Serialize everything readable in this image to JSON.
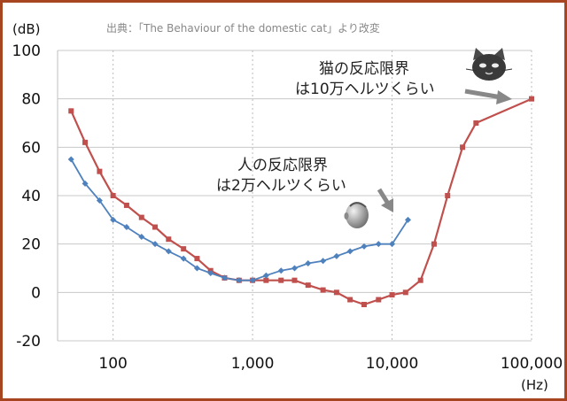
{
  "chart_data": {
    "type": "line",
    "source": "出典：「The Behaviour of the domestic cat」より改変",
    "y_unit": "(dB)",
    "x_unit": "(Hz)",
    "x_scale": "log",
    "xlim": [
      40,
      100000
    ],
    "ylim": [
      -20,
      100
    ],
    "y_ticks": [
      -20,
      0,
      20,
      40,
      60,
      80,
      100
    ],
    "x_ticks": [
      {
        "value": 100,
        "label": "100"
      },
      {
        "value": 1000,
        "label": "1,000"
      },
      {
        "value": 10000,
        "label": "10,000"
      },
      {
        "value": 100000,
        "label": "100,000"
      }
    ],
    "grid": {
      "horizontal": true,
      "vertical_dotted": true
    },
    "series": [
      {
        "key": "cat",
        "color": "#c0504d",
        "marker": "square",
        "points": [
          [
            50,
            75
          ],
          [
            63,
            62
          ],
          [
            80,
            50
          ],
          [
            100,
            40
          ],
          [
            125,
            36
          ],
          [
            160,
            31
          ],
          [
            200,
            27
          ],
          [
            250,
            22
          ],
          [
            320,
            18
          ],
          [
            400,
            14
          ],
          [
            500,
            9
          ],
          [
            630,
            6
          ],
          [
            800,
            5
          ],
          [
            1000,
            5
          ],
          [
            1250,
            5
          ],
          [
            1600,
            5
          ],
          [
            2000,
            5
          ],
          [
            2500,
            3
          ],
          [
            3200,
            1
          ],
          [
            4000,
            0
          ],
          [
            5000,
            -3
          ],
          [
            6300,
            -5
          ],
          [
            8000,
            -3
          ],
          [
            10000,
            -1
          ],
          [
            12500,
            0
          ],
          [
            16000,
            5
          ],
          [
            20000,
            20
          ],
          [
            25000,
            40
          ],
          [
            32000,
            60
          ],
          [
            40000,
            70
          ],
          [
            100000,
            80
          ]
        ]
      },
      {
        "key": "human",
        "color": "#4f81bd",
        "marker": "diamond",
        "points": [
          [
            50,
            55
          ],
          [
            63,
            45
          ],
          [
            80,
            38
          ],
          [
            100,
            30
          ],
          [
            125,
            27
          ],
          [
            160,
            23
          ],
          [
            200,
            20
          ],
          [
            250,
            17
          ],
          [
            320,
            14
          ],
          [
            400,
            10
          ],
          [
            500,
            8
          ],
          [
            630,
            6
          ],
          [
            800,
            5
          ],
          [
            1000,
            5
          ],
          [
            1250,
            7
          ],
          [
            1600,
            9
          ],
          [
            2000,
            10
          ],
          [
            2500,
            12
          ],
          [
            3200,
            13
          ],
          [
            4000,
            15
          ],
          [
            5000,
            17
          ],
          [
            6300,
            19
          ],
          [
            8000,
            20
          ],
          [
            10000,
            20
          ],
          [
            13000,
            30
          ]
        ]
      }
    ],
    "annotations": {
      "cat_line1": "猫の反応限界",
      "cat_line2": "は10万ヘルツくらい",
      "human_line1": "人の反応限界",
      "human_line2": "は2万ヘルツくらい"
    },
    "icons": [
      "cat-face-icon",
      "human-head-icon"
    ]
  }
}
